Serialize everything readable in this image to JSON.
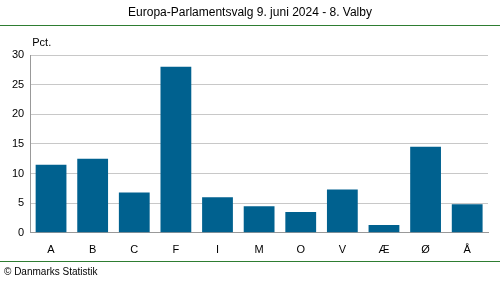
{
  "chart_data": {
    "type": "bar",
    "title": "Europa-Parlamentsvalg 9. juni 2024 - 8. Valby",
    "ylabel": "Pct.",
    "source": "© Danmarks Statistik",
    "categories": [
      "A",
      "B",
      "C",
      "F",
      "I",
      "M",
      "O",
      "V",
      "Æ",
      "Ø",
      "Å"
    ],
    "values": [
      11.5,
      12.5,
      6.8,
      28.0,
      6.0,
      4.5,
      3.5,
      7.3,
      1.3,
      14.5,
      4.8
    ],
    "color": "#00618f",
    "ylim": [
      0,
      30
    ],
    "yticks": [
      0,
      5,
      10,
      15,
      20,
      25,
      30
    ],
    "grid": true
  }
}
